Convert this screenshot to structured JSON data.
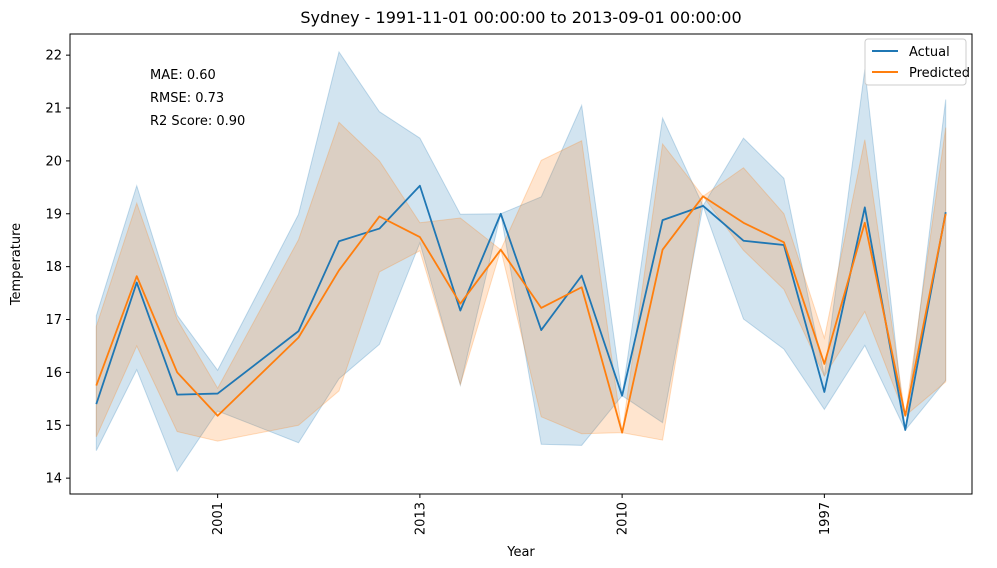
{
  "chart_data": {
    "type": "line",
    "title": "Sydney - 1991-11-01 00:00:00 to 2013-09-01 00:00:00",
    "xlabel": "Year",
    "ylabel": "Temperature",
    "ylim": [
      13.7,
      22.4
    ],
    "yticks": [
      14,
      15,
      16,
      17,
      18,
      19,
      20,
      21,
      22
    ],
    "xlim": [
      -0.65,
      21.65
    ],
    "xticks": [
      {
        "x": 3,
        "label": "2001"
      },
      {
        "x": 8,
        "label": "2013"
      },
      {
        "x": 13,
        "label": "2010"
      },
      {
        "x": 18,
        "label": "1997"
      }
    ],
    "x": [
      0,
      1,
      2,
      3,
      5,
      6,
      7,
      8,
      9,
      10,
      11,
      11,
      12,
      13,
      14,
      14,
      15,
      16,
      17,
      18,
      19,
      20,
      21
    ],
    "series": [
      {
        "name": "Actual",
        "color": "#1f77b4",
        "values": [
          15.4,
          17.7,
          15.58,
          15.6,
          16.78,
          18.48,
          18.72,
          19.53,
          17.17,
          19.0,
          16.8,
          16.8,
          17.83,
          15.56,
          18.88,
          18.88,
          19.15,
          18.49,
          18.41,
          15.63,
          19.12,
          14.91,
          19.03
        ],
        "band_low": [
          14.52,
          16.05,
          14.13,
          15.27,
          14.67,
          15.88,
          16.53,
          18.45,
          15.76,
          19.0,
          14.64,
          14.64,
          14.62,
          15.56,
          15.05,
          15.05,
          19.15,
          17.01,
          16.44,
          15.3,
          16.51,
          14.91,
          15.85
        ],
        "band_high": [
          17.07,
          19.53,
          17.08,
          16.04,
          18.99,
          22.06,
          20.93,
          20.43,
          18.99,
          19.0,
          19.32,
          19.32,
          21.05,
          15.56,
          20.81,
          20.81,
          19.15,
          20.43,
          19.67,
          15.93,
          21.73,
          14.91,
          21.16
        ]
      },
      {
        "name": "Predicted",
        "color": "#ff7f0e",
        "values": [
          15.75,
          17.82,
          16.0,
          15.18,
          16.66,
          17.93,
          18.95,
          18.56,
          17.3,
          18.32,
          17.22,
          17.22,
          17.61,
          14.86,
          18.32,
          18.32,
          19.33,
          18.83,
          18.46,
          16.16,
          18.83,
          15.18,
          19.0
        ],
        "band_low": [
          14.78,
          16.5,
          14.88,
          14.7,
          15.0,
          15.65,
          17.9,
          18.3,
          15.77,
          18.32,
          15.16,
          15.16,
          14.84,
          14.86,
          14.72,
          14.72,
          19.33,
          18.31,
          17.57,
          15.93,
          17.15,
          15.18,
          15.82
        ],
        "band_high": [
          16.87,
          19.2,
          17.0,
          15.7,
          18.51,
          20.73,
          20.0,
          18.83,
          18.92,
          18.32,
          20.01,
          20.01,
          20.38,
          14.86,
          20.32,
          20.32,
          19.33,
          19.87,
          19.0,
          16.65,
          20.4,
          15.18,
          20.63
        ]
      }
    ],
    "legend": {
      "placement": "top-right",
      "entries": [
        "Actual",
        "Predicted"
      ]
    },
    "annotations": [
      "MAE: 0.60",
      "RMSE: 0.73",
      "R2 Score: 0.90"
    ],
    "grid": false
  }
}
